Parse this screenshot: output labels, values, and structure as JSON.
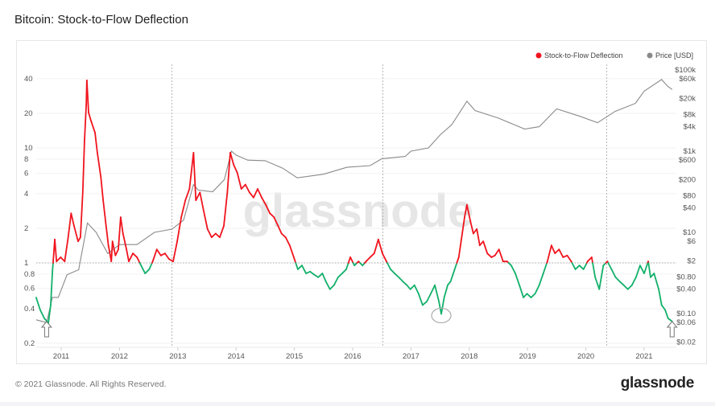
{
  "header": {
    "title": "Bitcoin: Stock-to-Flow Deflection"
  },
  "footer": {
    "copyright": "© 2021 Glassnode. All Rights Reserved.",
    "logo": "glassnode"
  },
  "watermark": "glassnode",
  "chart_data": {
    "type": "line",
    "title": "Bitcoin: Stock-to-Flow Deflection",
    "legend_position": "top-right",
    "grid": true,
    "colors": {
      "above_one": "#f0141e",
      "below_one": "#12b06a",
      "price": "#8a8a8a"
    },
    "x_ticks": [
      "2011",
      "2012",
      "2013",
      "2014",
      "2015",
      "2016",
      "2017",
      "2018",
      "2019",
      "2020",
      "2021"
    ],
    "y_left": {
      "scale": "log",
      "range": [
        0.2,
        50
      ],
      "ticks": [
        {
          "v": 40,
          "label": "40"
        },
        {
          "v": 20,
          "label": "20"
        },
        {
          "v": 10,
          "label": "10"
        },
        {
          "v": 8,
          "label": "8"
        },
        {
          "v": 6,
          "label": "6"
        },
        {
          "v": 4,
          "label": "4"
        },
        {
          "v": 2,
          "label": "2"
        },
        {
          "v": 1,
          "label": "1"
        },
        {
          "v": 0.8,
          "label": "0.8"
        },
        {
          "v": 0.6,
          "label": "0.6"
        },
        {
          "v": 0.4,
          "label": "0.4"
        },
        {
          "v": 0.2,
          "label": "0.2"
        }
      ],
      "reference_line": 1
    },
    "y_right": {
      "scale": "log",
      "range": [
        0.02,
        100000
      ],
      "ticks": [
        {
          "v": 100000,
          "label": "$100k"
        },
        {
          "v": 60000,
          "label": "$60k"
        },
        {
          "v": 20000,
          "label": "$20k"
        },
        {
          "v": 8000,
          "label": "$8k"
        },
        {
          "v": 4000,
          "label": "$4k"
        },
        {
          "v": 1000,
          "label": "$1k"
        },
        {
          "v": 600,
          "label": "$600"
        },
        {
          "v": 200,
          "label": "$200"
        },
        {
          "v": 80,
          "label": "$80"
        },
        {
          "v": 40,
          "label": "$40"
        },
        {
          "v": 10,
          "label": "$10"
        },
        {
          "v": 6,
          "label": "$6"
        },
        {
          "v": 2,
          "label": "$2"
        },
        {
          "v": 0.8,
          "label": "$0.80"
        },
        {
          "v": 0.4,
          "label": "$0.40"
        },
        {
          "v": 0.1,
          "label": "$0.10"
        },
        {
          "v": 0.06,
          "label": "$0.06"
        },
        {
          "v": 0.02,
          "label": "$0.02"
        }
      ]
    },
    "vertical_markers": [
      2012.9,
      2016.52,
      2020.36
    ],
    "annotations": {
      "arrows": [
        2010.75,
        2021.48
      ],
      "circle": {
        "x": 2017.52,
        "y": 0.36
      }
    },
    "series": [
      {
        "name": "Stock-to-Flow Deflection",
        "axis": "left",
        "points": [
          [
            2010.57,
            0.5
          ],
          [
            2010.64,
            0.39
          ],
          [
            2010.71,
            0.33
          ],
          [
            2010.78,
            0.3
          ],
          [
            2010.82,
            0.43
          ],
          [
            2010.85,
            0.84
          ],
          [
            2010.89,
            1.6
          ],
          [
            2010.92,
            1.03
          ],
          [
            2010.99,
            1.12
          ],
          [
            2011.06,
            1.03
          ],
          [
            2011.12,
            1.67
          ],
          [
            2011.17,
            2.7
          ],
          [
            2011.22,
            2.1
          ],
          [
            2011.29,
            1.54
          ],
          [
            2011.33,
            1.67
          ],
          [
            2011.37,
            4.1
          ],
          [
            2011.4,
            11.6
          ],
          [
            2011.43,
            23.9
          ],
          [
            2011.44,
            38.7
          ],
          [
            2011.47,
            20.3
          ],
          [
            2011.51,
            17.3
          ],
          [
            2011.58,
            13.6
          ],
          [
            2011.62,
            9.1
          ],
          [
            2011.68,
            5.6
          ],
          [
            2011.72,
            3.5
          ],
          [
            2011.77,
            2.1
          ],
          [
            2011.81,
            1.42
          ],
          [
            2011.86,
            1.03
          ],
          [
            2011.88,
            1.54
          ],
          [
            2011.93,
            1.16
          ],
          [
            2011.98,
            1.31
          ],
          [
            2012.02,
            2.5
          ],
          [
            2012.06,
            1.8
          ],
          [
            2012.12,
            1.31
          ],
          [
            2012.16,
            1.03
          ],
          [
            2012.23,
            1.21
          ],
          [
            2012.3,
            1.12
          ],
          [
            2012.37,
            0.95
          ],
          [
            2012.44,
            0.81
          ],
          [
            2012.51,
            0.88
          ],
          [
            2012.57,
            1.03
          ],
          [
            2012.64,
            1.31
          ],
          [
            2012.71,
            1.16
          ],
          [
            2012.78,
            1.21
          ],
          [
            2012.85,
            1.08
          ],
          [
            2012.92,
            1.03
          ],
          [
            2012.99,
            1.54
          ],
          [
            2013.06,
            2.5
          ],
          [
            2013.13,
            3.5
          ],
          [
            2013.2,
            4.4
          ],
          [
            2013.27,
            9.1
          ],
          [
            2013.31,
            3.5
          ],
          [
            2013.38,
            4.1
          ],
          [
            2013.44,
            2.9
          ],
          [
            2013.51,
            1.97
          ],
          [
            2013.58,
            1.67
          ],
          [
            2013.65,
            1.8
          ],
          [
            2013.72,
            1.67
          ],
          [
            2013.79,
            2.1
          ],
          [
            2013.85,
            4.1
          ],
          [
            2013.9,
            9.1
          ],
          [
            2013.96,
            7.1
          ],
          [
            2014.02,
            6.1
          ],
          [
            2014.09,
            4.4
          ],
          [
            2014.16,
            4.8
          ],
          [
            2014.23,
            4.1
          ],
          [
            2014.3,
            3.7
          ],
          [
            2014.37,
            4.4
          ],
          [
            2014.44,
            3.7
          ],
          [
            2014.51,
            3.2
          ],
          [
            2014.58,
            2.7
          ],
          [
            2014.65,
            2.5
          ],
          [
            2014.72,
            2.1
          ],
          [
            2014.78,
            1.8
          ],
          [
            2014.85,
            1.67
          ],
          [
            2014.92,
            1.42
          ],
          [
            2014.99,
            1.12
          ],
          [
            2015.06,
            0.88
          ],
          [
            2015.13,
            0.95
          ],
          [
            2015.2,
            0.81
          ],
          [
            2015.27,
            0.84
          ],
          [
            2015.34,
            0.79
          ],
          [
            2015.41,
            0.75
          ],
          [
            2015.48,
            0.81
          ],
          [
            2015.54,
            0.69
          ],
          [
            2015.61,
            0.59
          ],
          [
            2015.68,
            0.64
          ],
          [
            2015.75,
            0.75
          ],
          [
            2015.82,
            0.81
          ],
          [
            2015.89,
            0.88
          ],
          [
            2015.96,
            1.12
          ],
          [
            2016.03,
            0.95
          ],
          [
            2016.1,
            1.03
          ],
          [
            2016.17,
            0.95
          ],
          [
            2016.23,
            1.03
          ],
          [
            2016.3,
            1.12
          ],
          [
            2016.37,
            1.21
          ],
          [
            2016.44,
            1.6
          ],
          [
            2016.51,
            1.21
          ],
          [
            2016.58,
            1.03
          ],
          [
            2016.65,
            0.88
          ],
          [
            2016.72,
            0.81
          ],
          [
            2016.79,
            0.75
          ],
          [
            2016.86,
            0.69
          ],
          [
            2016.93,
            0.64
          ],
          [
            2016.99,
            0.59
          ],
          [
            2017.06,
            0.64
          ],
          [
            2017.13,
            0.54
          ],
          [
            2017.2,
            0.43
          ],
          [
            2017.27,
            0.46
          ],
          [
            2017.34,
            0.54
          ],
          [
            2017.41,
            0.64
          ],
          [
            2017.48,
            0.46
          ],
          [
            2017.52,
            0.36
          ],
          [
            2017.57,
            0.5
          ],
          [
            2017.63,
            0.64
          ],
          [
            2017.68,
            0.69
          ],
          [
            2017.75,
            0.88
          ],
          [
            2017.82,
            1.12
          ],
          [
            2017.86,
            1.54
          ],
          [
            2017.92,
            2.5
          ],
          [
            2017.96,
            3.2
          ],
          [
            2018.02,
            2.3
          ],
          [
            2018.07,
            1.8
          ],
          [
            2018.13,
            1.97
          ],
          [
            2018.18,
            1.42
          ],
          [
            2018.24,
            1.54
          ],
          [
            2018.31,
            1.21
          ],
          [
            2018.38,
            1.12
          ],
          [
            2018.44,
            1.16
          ],
          [
            2018.51,
            1.31
          ],
          [
            2018.58,
            1.03
          ],
          [
            2018.65,
            1.03
          ],
          [
            2018.72,
            0.95
          ],
          [
            2018.79,
            0.81
          ],
          [
            2018.86,
            0.64
          ],
          [
            2018.93,
            0.5
          ],
          [
            2018.99,
            0.54
          ],
          [
            2019.06,
            0.5
          ],
          [
            2019.13,
            0.54
          ],
          [
            2019.2,
            0.64
          ],
          [
            2019.27,
            0.81
          ],
          [
            2019.34,
            1.03
          ],
          [
            2019.41,
            1.42
          ],
          [
            2019.47,
            1.21
          ],
          [
            2019.54,
            1.31
          ],
          [
            2019.61,
            1.12
          ],
          [
            2019.68,
            1.16
          ],
          [
            2019.75,
            1.03
          ],
          [
            2019.82,
            0.88
          ],
          [
            2019.89,
            0.95
          ],
          [
            2019.96,
            0.88
          ],
          [
            2020.03,
            1.03
          ],
          [
            2020.1,
            1.12
          ],
          [
            2020.16,
            0.75
          ],
          [
            2020.23,
            0.59
          ],
          [
            2020.3,
            0.95
          ],
          [
            2020.37,
            1.03
          ],
          [
            2020.44,
            0.88
          ],
          [
            2020.51,
            0.75
          ],
          [
            2020.58,
            0.69
          ],
          [
            2020.65,
            0.64
          ],
          [
            2020.72,
            0.59
          ],
          [
            2020.79,
            0.64
          ],
          [
            2020.86,
            0.75
          ],
          [
            2020.93,
            0.95
          ],
          [
            2021.0,
            0.81
          ],
          [
            2021.07,
            1.03
          ],
          [
            2021.11,
            0.75
          ],
          [
            2021.17,
            0.81
          ],
          [
            2021.25,
            0.59
          ],
          [
            2021.3,
            0.43
          ],
          [
            2021.36,
            0.39
          ],
          [
            2021.41,
            0.33
          ],
          [
            2021.48,
            0.31
          ]
        ]
      },
      {
        "name": "Price [USD]",
        "axis": "right",
        "points": [
          [
            2010.57,
            0.07
          ],
          [
            2010.75,
            0.06
          ],
          [
            2010.85,
            0.25
          ],
          [
            2010.95,
            0.25
          ],
          [
            2011.1,
            0.9
          ],
          [
            2011.3,
            1.2
          ],
          [
            2011.45,
            17
          ],
          [
            2011.6,
            10
          ],
          [
            2011.8,
            3
          ],
          [
            2012.0,
            5
          ],
          [
            2012.3,
            5
          ],
          [
            2012.6,
            10
          ],
          [
            2012.9,
            12
          ],
          [
            2013.1,
            20
          ],
          [
            2013.27,
            150
          ],
          [
            2013.35,
            110
          ],
          [
            2013.6,
            100
          ],
          [
            2013.8,
            200
          ],
          [
            2013.92,
            1000
          ],
          [
            2014.0,
            800
          ],
          [
            2014.2,
            600
          ],
          [
            2014.5,
            580
          ],
          [
            2014.8,
            380
          ],
          [
            2015.05,
            220
          ],
          [
            2015.5,
            270
          ],
          [
            2015.9,
            400
          ],
          [
            2016.3,
            440
          ],
          [
            2016.5,
            650
          ],
          [
            2016.9,
            740
          ],
          [
            2017.0,
            1000
          ],
          [
            2017.3,
            1200
          ],
          [
            2017.5,
            2500
          ],
          [
            2017.7,
            4500
          ],
          [
            2017.96,
            17000
          ],
          [
            2018.1,
            10000
          ],
          [
            2018.5,
            6500
          ],
          [
            2018.95,
            3500
          ],
          [
            2019.2,
            4000
          ],
          [
            2019.5,
            11000
          ],
          [
            2019.9,
            7200
          ],
          [
            2020.2,
            5000
          ],
          [
            2020.5,
            9500
          ],
          [
            2020.85,
            15000
          ],
          [
            2021.0,
            30000
          ],
          [
            2021.3,
            58000
          ],
          [
            2021.4,
            40000
          ],
          [
            2021.48,
            33000
          ]
        ]
      }
    ]
  }
}
